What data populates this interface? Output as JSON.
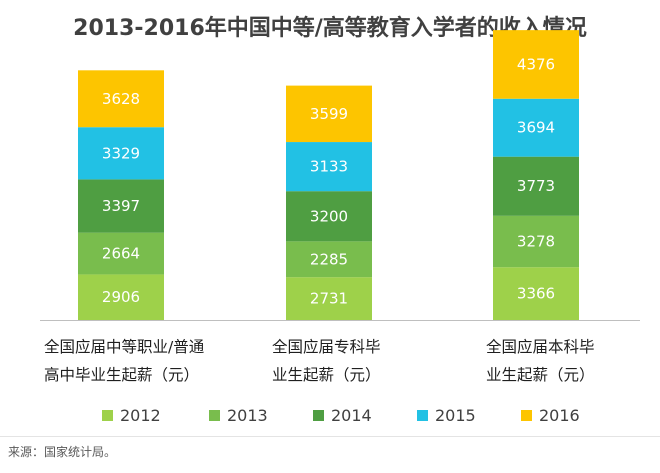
{
  "chart_data": {
    "type": "bar",
    "stacked": true,
    "title": "2013-2016年中国中等/高等教育入学者的收入情况",
    "categories": [
      "全国应届中等职业/普通\n高中毕业生起薪（元）",
      "全国应届专科毕\n业生起薪（元）",
      "全国应届本科毕\n业生起薪（元）"
    ],
    "series": [
      {
        "name": "2012",
        "color": "#9ed14a",
        "values": [
          2906,
          2731,
          3366
        ]
      },
      {
        "name": "2013",
        "color": "#79bd4d",
        "values": [
          2664,
          2285,
          3278
        ]
      },
      {
        "name": "2014",
        "color": "#4f9e42",
        "values": [
          3397,
          3200,
          3773
        ]
      },
      {
        "name": "2015",
        "color": "#22c1e4",
        "values": [
          3329,
          3133,
          3694
        ]
      },
      {
        "name": "2016",
        "color": "#fdc500",
        "values": [
          3628,
          3599,
          4376
        ]
      }
    ],
    "legend_position": "bottom",
    "grid": false
  },
  "footer": {
    "source": "来源：国家统计局。"
  }
}
